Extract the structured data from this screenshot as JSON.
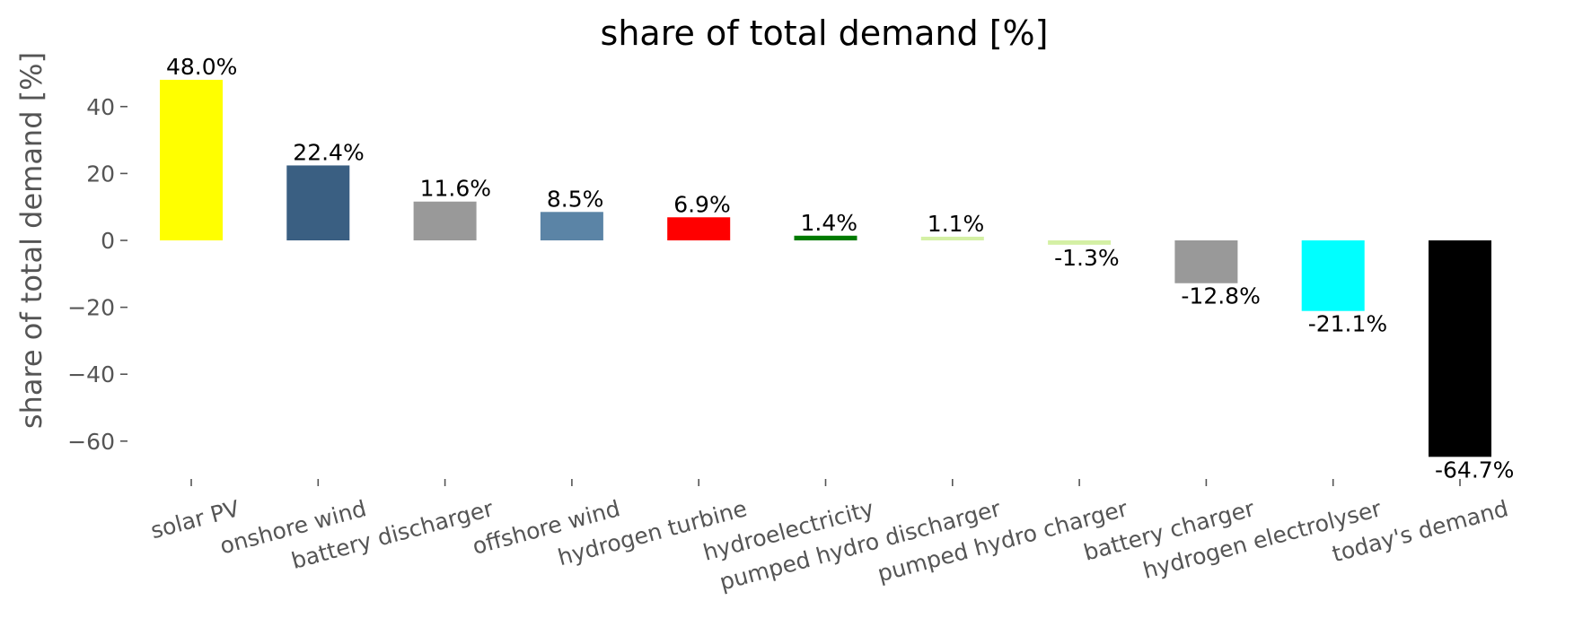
{
  "chart_data": {
    "type": "bar",
    "title": "share of total demand [%]",
    "xlabel": "",
    "ylabel": "share of total demand [%]",
    "ylim": [
      -70,
      50
    ],
    "yticks": [
      40,
      20,
      0,
      -20,
      -40,
      -60
    ],
    "ytick_labels": [
      "40",
      "20",
      "0",
      "−20",
      "−40",
      "−60"
    ],
    "grid": false,
    "categories": [
      "solar PV",
      "onshore wind",
      "battery discharger",
      "offshore wind",
      "hydrogen turbine",
      "hydroelectricity",
      "pumped hydro discharger",
      "pumped hydro charger",
      "battery charger",
      "hydrogen electrolyser",
      "today's demand"
    ],
    "values": [
      48.0,
      22.4,
      11.6,
      8.5,
      6.9,
      1.4,
      1.1,
      -1.3,
      -12.8,
      -21.1,
      -64.7
    ],
    "labels": [
      "48.0%",
      "22.4%",
      "11.6%",
      "8.5%",
      "6.9%",
      "1.4%",
      "1.1%",
      "-1.3%",
      "-12.8%",
      "-21.1%",
      "-64.7%"
    ],
    "colors": [
      "#ffff00",
      "#3a5f82",
      "#999999",
      "#5b84a6",
      "#ff0000",
      "#007a00",
      "#d4f0a4",
      "#d4f0a4",
      "#999999",
      "#00ffff",
      "#000000"
    ]
  }
}
